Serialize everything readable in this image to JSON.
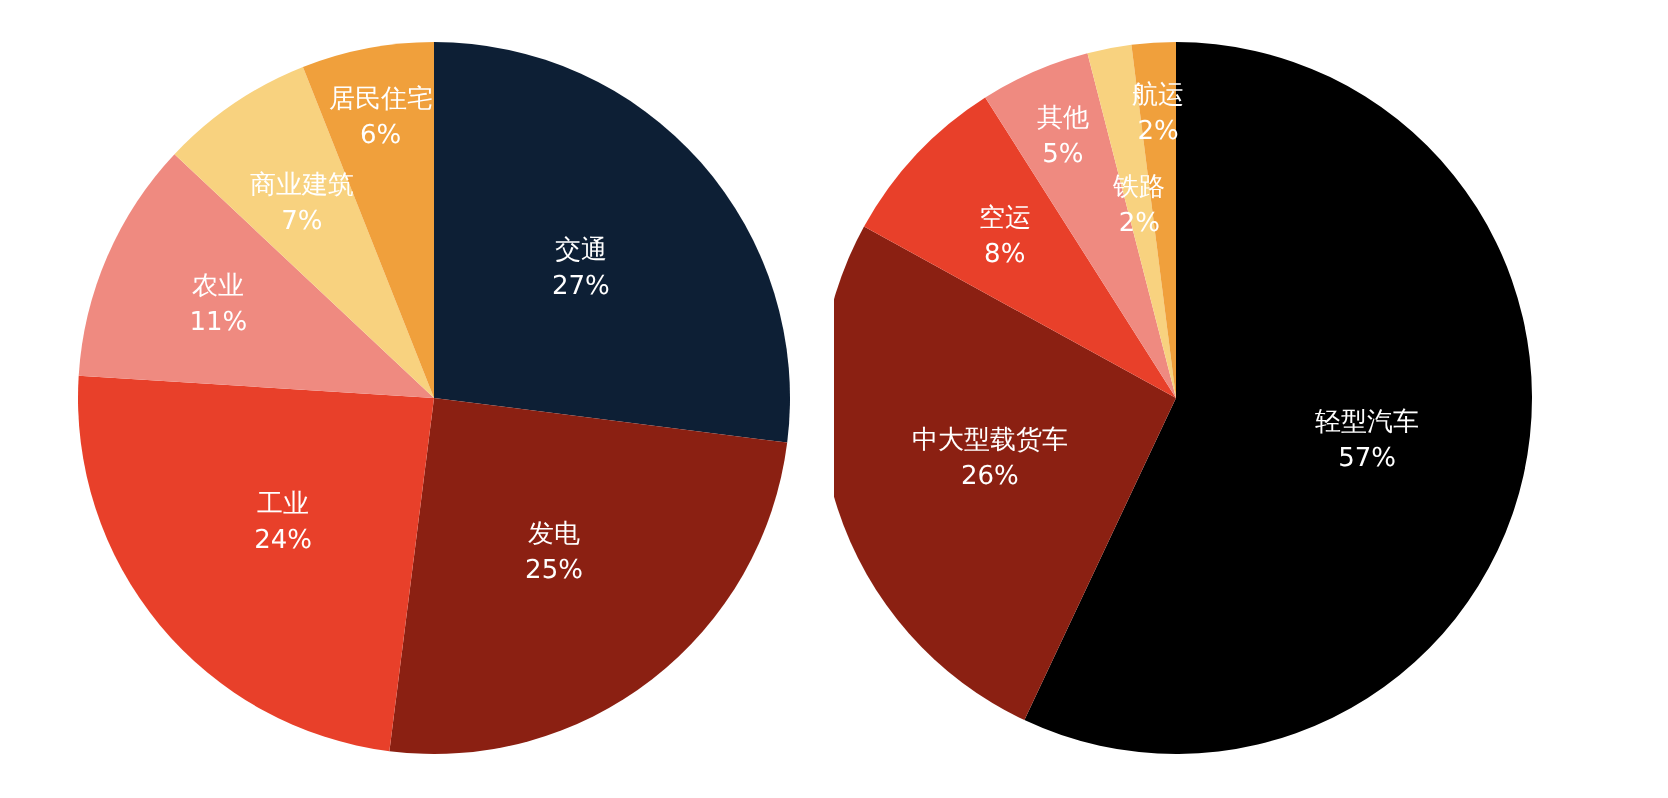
{
  "chart_data": [
    {
      "type": "pie",
      "categories": [
        "交通",
        "发电",
        "工业",
        "农业",
        "商业建筑",
        "居民住宅"
      ],
      "values": [
        27,
        25,
        24,
        11,
        7,
        6
      ],
      "value_labels": [
        "27%",
        "25%",
        "24%",
        "11%",
        "7%",
        "6%"
      ],
      "colors": [
        "#0d1f35",
        "#8b2012",
        "#e8402a",
        "#ef8a80",
        "#f8d27f",
        "#f0a03c"
      ],
      "legend": false
    },
    {
      "type": "pie",
      "categories": [
        "轻型汽车",
        "中大型载货车",
        "空运",
        "其他",
        "铁路",
        "航运"
      ],
      "values": [
        57,
        26,
        8,
        5,
        2,
        2
      ],
      "value_labels": [
        "57%",
        "26%",
        "8%",
        "5%",
        "2%",
        "2%"
      ],
      "colors": [
        "#000000",
        "#8b2012",
        "#e8402a",
        "#ef8a80",
        "#f8d27f",
        "#f0a03c"
      ],
      "legend": false
    }
  ]
}
